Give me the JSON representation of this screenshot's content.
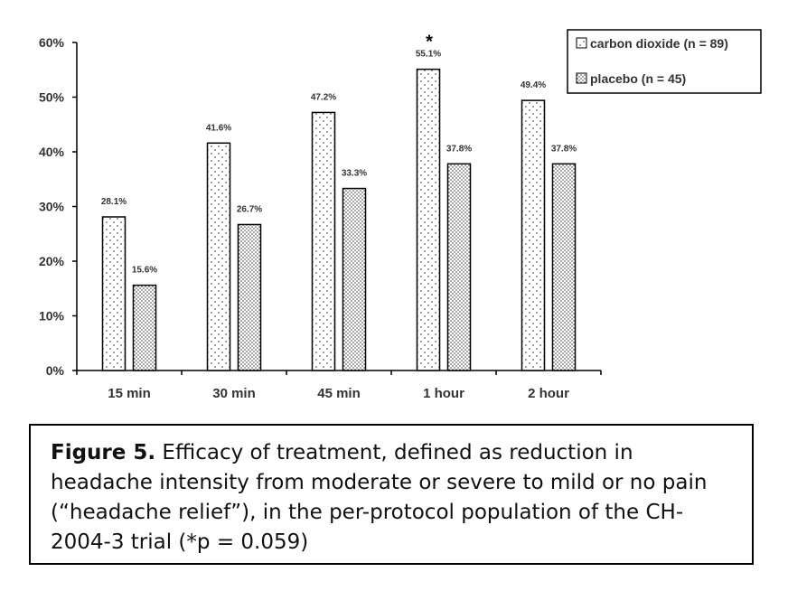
{
  "chart_data": {
    "type": "bar",
    "categories": [
      "15 min",
      "30 min",
      "45 min",
      "1 hour",
      "2 hour"
    ],
    "series": [
      {
        "name": "carbon dioxide (n = 89)",
        "values": [
          28.1,
          41.6,
          47.2,
          55.1,
          49.4
        ],
        "labels": [
          "28.1%",
          "41.6%",
          "47.2%",
          "55.1%",
          "49.4%"
        ],
        "pattern": "sparse-dots"
      },
      {
        "name": "placebo (n = 45)",
        "values": [
          15.6,
          26.7,
          33.3,
          37.8,
          37.8
        ],
        "labels": [
          "15.6%",
          "26.7%",
          "33.3%",
          "37.8%",
          "37.8%"
        ],
        "pattern": "dense-dots"
      }
    ],
    "y_ticks": [
      "0%",
      "10%",
      "20%",
      "30%",
      "40%",
      "50%",
      "60%"
    ],
    "ylim": [
      0,
      60
    ],
    "grid": false,
    "legend_position": "top-right",
    "annotations": [
      {
        "text": "*",
        "category": "1 hour",
        "series": 0
      }
    ]
  },
  "caption": {
    "bold": "Figure 5.",
    "text": " Efficacy of treatment, defined as reduction in headache intensity from moderate or severe to mild or no pain (“headache relief”), in the per-protocol population of the CH-2004-3 trial (*p = 0.059)"
  },
  "colors": {
    "bar_stroke": "#000000",
    "dot": "#333333",
    "axis": "#000000"
  }
}
